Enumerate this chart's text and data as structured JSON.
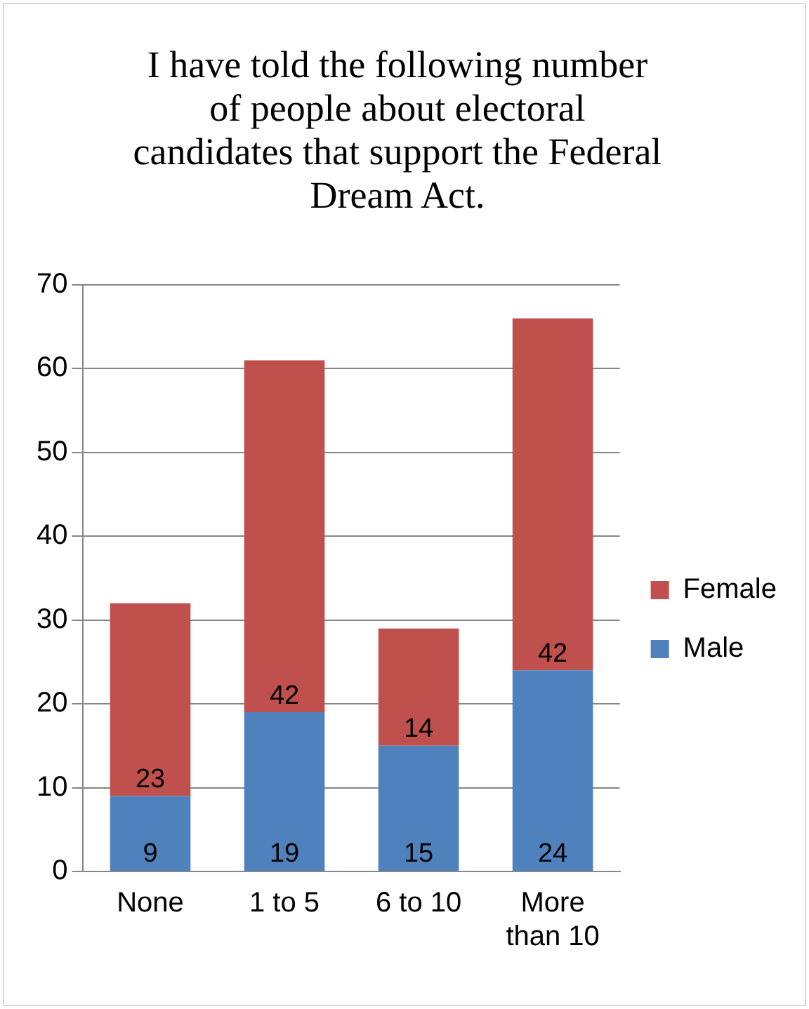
{
  "chart_data": {
    "type": "bar",
    "title": "I have told the following number of people about electoral candidates that support the Federal Dream Act.",
    "categories": [
      "None",
      "1 to 5",
      "6 to 10",
      "More than 10"
    ],
    "series": [
      {
        "name": "Male",
        "color": "#4f81bd",
        "values": [
          9,
          19,
          15,
          24
        ]
      },
      {
        "name": "Female",
        "color": "#c0504d",
        "values": [
          23,
          42,
          14,
          42
        ]
      }
    ],
    "stacked": true,
    "ylim": [
      0,
      70
    ],
    "yticks": [
      0,
      10,
      20,
      30,
      40,
      50,
      60,
      70
    ],
    "grid": "y",
    "legend": "right",
    "data_labels": true
  }
}
